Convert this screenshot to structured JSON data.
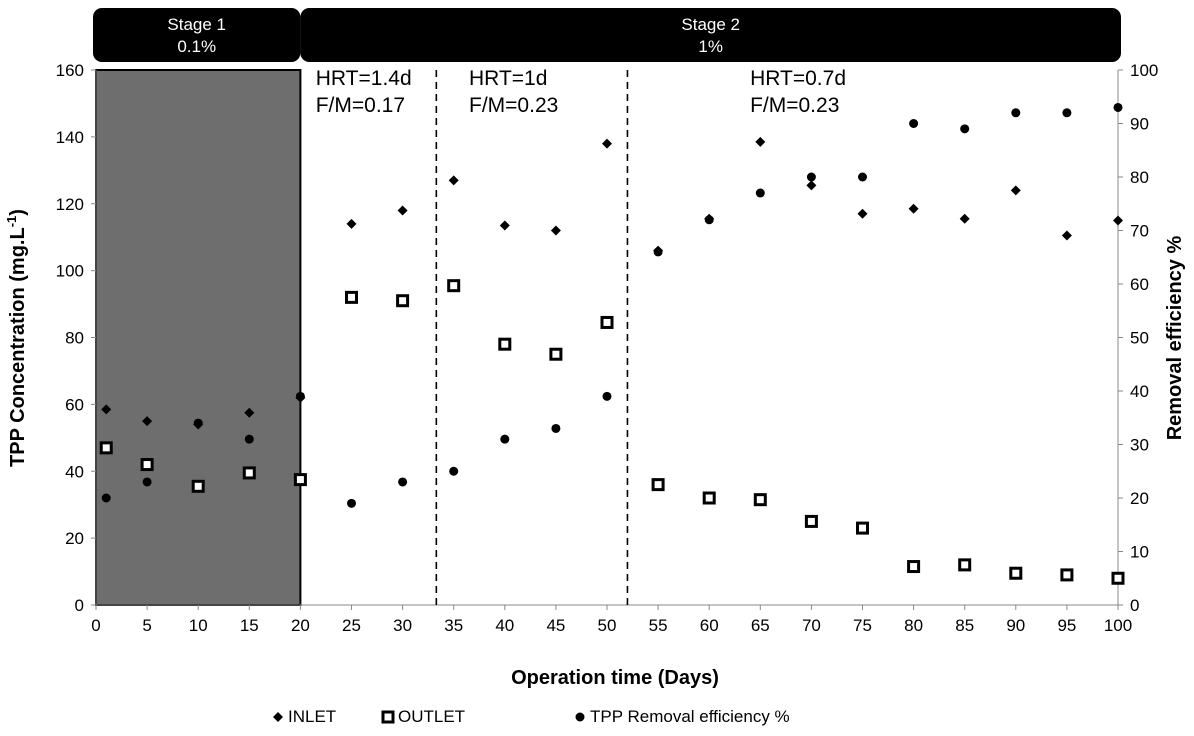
{
  "chart_data": {
    "type": "scatter",
    "xlabel": "Operation time (Days)",
    "ylabel": "TPP Concentration (mg.L-1)",
    "ylabel_base": "TPP Concentration (mg.L",
    "ylabel_sup": "-1",
    "ylabel_close": ")",
    "y2label": "Removal efficiency %",
    "xlim": [
      0,
      100
    ],
    "ylim": [
      0,
      160
    ],
    "y2lim": [
      0,
      100
    ],
    "x_ticks": [
      0,
      5,
      10,
      15,
      20,
      25,
      30,
      35,
      40,
      45,
      50,
      55,
      60,
      65,
      70,
      75,
      80,
      85,
      90,
      95,
      100
    ],
    "y_ticks": [
      0,
      20,
      40,
      60,
      80,
      100,
      120,
      140,
      160
    ],
    "y2_ticks": [
      0,
      10,
      20,
      30,
      40,
      50,
      60,
      70,
      80,
      90,
      100
    ],
    "grid": false,
    "legend_position": "bottom",
    "stages": [
      {
        "name": "Stage 1",
        "value": "0.1%",
        "x_range": [
          0,
          20
        ]
      },
      {
        "name": "Stage 2",
        "value": "1%",
        "x_range": [
          20,
          100
        ]
      }
    ],
    "shaded_region": [
      0,
      20
    ],
    "dividers": [
      33.3,
      52
    ],
    "annotations": [
      {
        "line1": "HRT=1.4d",
        "line2": "F/M=0.17",
        "x": 21.5
      },
      {
        "line1": "HRT=1d",
        "line2": "F/M=0.23",
        "x": 36.5
      },
      {
        "line1": "HRT=0.7d",
        "line2": "F/M=0.23",
        "x": 64
      }
    ],
    "series": [
      {
        "name": "INLET",
        "axis": "left",
        "marker": "diamond",
        "x": [
          1,
          5,
          10,
          15,
          20,
          25,
          30,
          35,
          40,
          45,
          50,
          55,
          60,
          65,
          70,
          75,
          80,
          85,
          90,
          95,
          100
        ],
        "y": [
          58.5,
          55,
          54,
          57.5,
          62,
          114,
          118,
          127,
          113.5,
          112,
          138,
          106,
          115.5,
          138.5,
          125.5,
          117,
          118.5,
          115.5,
          124,
          110.5,
          115
        ]
      },
      {
        "name": "OUTLET",
        "axis": "left",
        "marker": "square",
        "x": [
          1,
          5,
          10,
          15,
          20,
          25,
          30,
          35,
          40,
          45,
          50,
          55,
          60,
          65,
          70,
          75,
          80,
          85,
          90,
          95,
          100
        ],
        "y": [
          47,
          42,
          35.5,
          39.5,
          37.5,
          92,
          91,
          95.5,
          78,
          75,
          84.5,
          36,
          32,
          31.5,
          25,
          23,
          11.5,
          12,
          9.5,
          9,
          8
        ]
      },
      {
        "name": "TPP Removal efficiency %",
        "axis": "right",
        "marker": "circle",
        "x": [
          1,
          5,
          10,
          15,
          20,
          25,
          30,
          35,
          40,
          45,
          50,
          55,
          60,
          65,
          70,
          75,
          80,
          85,
          90,
          95,
          100
        ],
        "y": [
          20,
          23,
          34,
          31,
          39,
          19,
          23,
          25,
          31,
          33,
          39,
          66,
          72,
          77,
          80,
          80,
          90,
          89,
          92,
          92,
          93
        ]
      }
    ]
  }
}
